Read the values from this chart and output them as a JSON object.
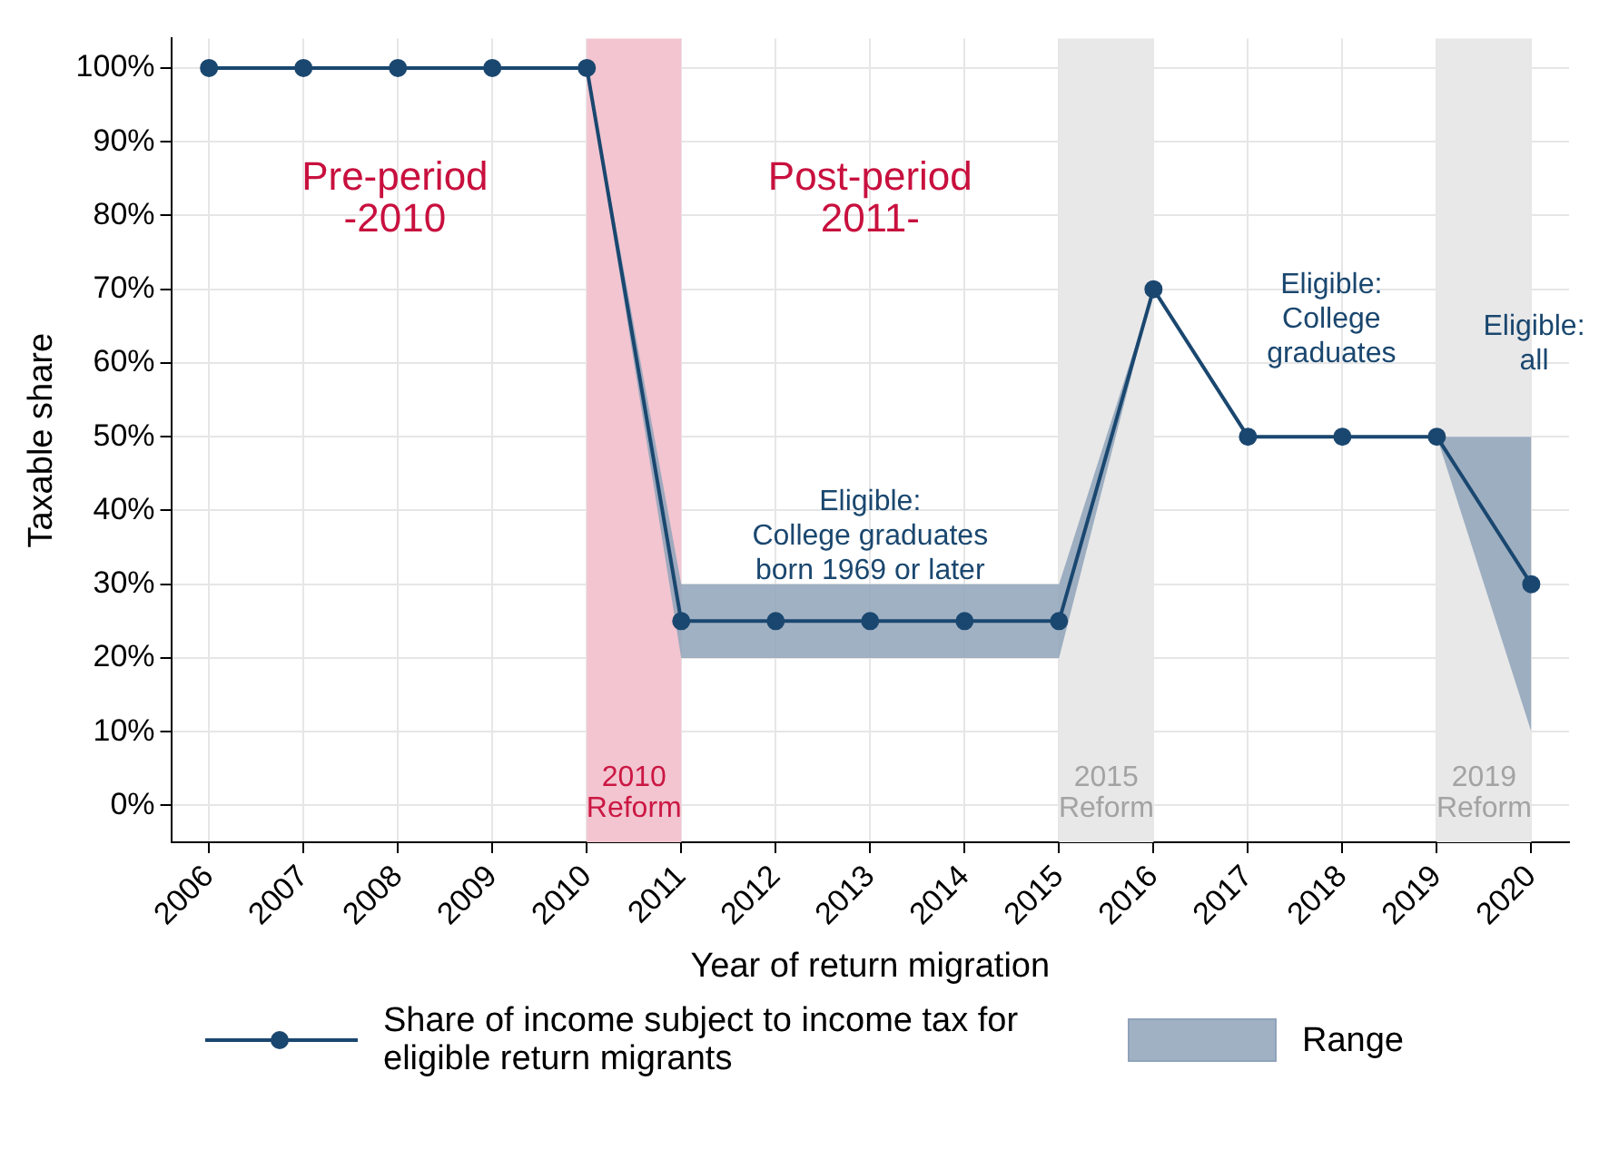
{
  "chart_data": {
    "type": "line",
    "xlabel": "Year of return migration",
    "ylabel": "Taxable share",
    "x": [
      2006,
      2007,
      2008,
      2009,
      2010,
      2011,
      2012,
      2013,
      2014,
      2015,
      2016,
      2017,
      2018,
      2019,
      2020
    ],
    "xlim": [
      2005.6,
      2020.4
    ],
    "xticks": [
      2006,
      2007,
      2008,
      2009,
      2010,
      2011,
      2012,
      2013,
      2014,
      2015,
      2016,
      2017,
      2018,
      2019,
      2020
    ],
    "ylim": [
      -5,
      104
    ],
    "yticks": [
      {
        "value": 0,
        "label": "0%"
      },
      {
        "value": 10,
        "label": "10%"
      },
      {
        "value": 20,
        "label": "20%"
      },
      {
        "value": 30,
        "label": "30%"
      },
      {
        "value": 40,
        "label": "40%"
      },
      {
        "value": 50,
        "label": "50%"
      },
      {
        "value": 60,
        "label": "60%"
      },
      {
        "value": 70,
        "label": "70%"
      },
      {
        "value": 80,
        "label": "80%"
      },
      {
        "value": 90,
        "label": "90%"
      },
      {
        "value": 100,
        "label": "100%"
      }
    ],
    "series": [
      {
        "name": "Share of income subject to income tax for eligible return migrants",
        "color": "#1a476f",
        "marker": "circle",
        "lower": [
          100,
          100,
          100,
          100,
          100,
          20,
          20,
          20,
          20,
          20,
          70,
          50,
          50,
          50,
          10
        ],
        "upper": [
          100,
          100,
          100,
          100,
          100,
          30,
          30,
          30,
          30,
          30,
          70,
          50,
          50,
          50,
          50
        ],
        "values": [
          100,
          100,
          100,
          100,
          100,
          25,
          25,
          25,
          25,
          25,
          70,
          50,
          50,
          50,
          30
        ]
      },
      {
        "name": "Range",
        "type": "area",
        "color": "#8fa3ba",
        "values": [
          null,
          null,
          null,
          null,
          null,
          null,
          null,
          null,
          null,
          null,
          null,
          null,
          null,
          null,
          null
        ]
      }
    ],
    "bands": [
      {
        "axis": "x",
        "from": 2010,
        "to": 2011,
        "label": "2010\nReform",
        "color": "#f2c5d0"
      },
      {
        "axis": "x",
        "from": 2015,
        "to": 2016,
        "label": "2015\nReform",
        "color": "#e8e8e8"
      },
      {
        "axis": "x",
        "from": 2019,
        "to": 2020,
        "label": "2019\nReform",
        "color": "#e8e8e8"
      }
    ],
    "annotations": [
      "Pre-period\n-2010",
      "Post-period\n2011-",
      "Eligible:\nCollege graduates\nborn 1969 or later",
      "Eligible:\nCollege\ngraduates",
      "Eligible:\nall"
    ],
    "grid": true,
    "legend": "bottom",
    "line_style": "solid"
  }
}
